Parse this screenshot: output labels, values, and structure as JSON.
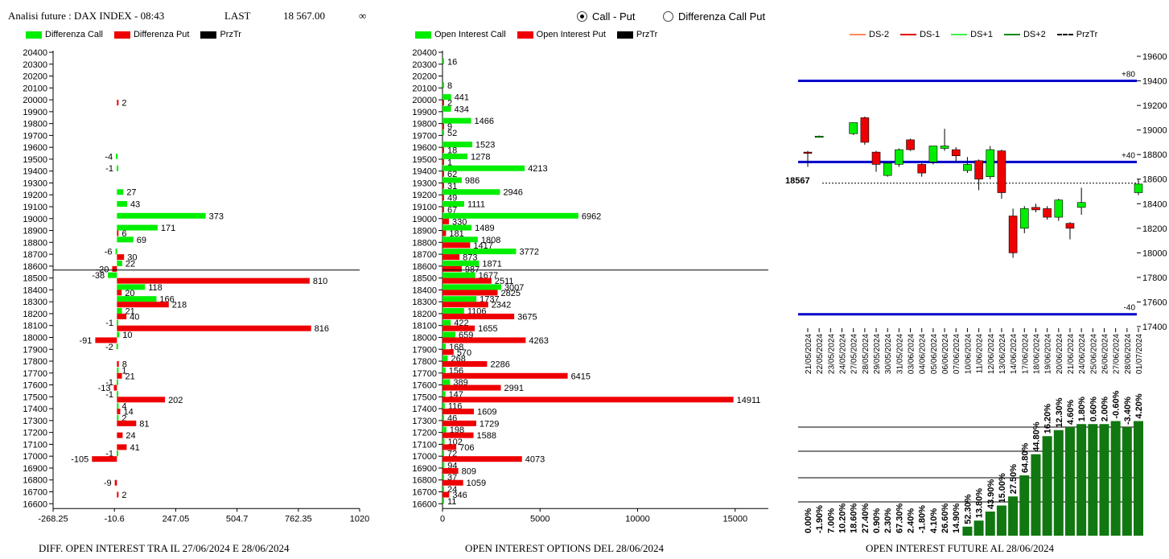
{
  "header": {
    "title": "Analisi future : DAX INDEX - 08:43",
    "last_label": "LAST",
    "last_value": "18 567.00",
    "infinity": "∞"
  },
  "toggle": {
    "option1": "Call - Put",
    "option2": "Differenza Call Put",
    "selected": "Call - Put"
  },
  "legends": {
    "left": [
      "Differenza Call",
      "Differenza Put",
      "PrzTr"
    ],
    "middle": [
      "Open Interest Call",
      "Open Interest Put",
      "PrzTr"
    ],
    "right": [
      "DS-2",
      "DS-1",
      "DS+1",
      "DS+2",
      "PrzTr"
    ]
  },
  "colors": {
    "call": "#00ee00",
    "put": "#ee0000",
    "prz": "#000000",
    "ds_line": "#0000cc",
    "oi_bar": "#117711",
    "ds2": "#ff8855",
    "ds1": "#dd0000",
    "dsp1": "#44ee44",
    "dsp2": "#118811"
  },
  "footers": {
    "left": "DIFF. OPEN INTEREST TRA IL 27/06/2024 E 28/06/2024",
    "middle": "OPEN INTEREST OPTIONS DEL 28/06/2024",
    "right": "OPEN INTEREST FUTURE AL 28/06/2024"
  },
  "chart_data": [
    {
      "type": "bar",
      "orientation": "horizontal",
      "strikes": [
        20400,
        20300,
        20200,
        20100,
        20000,
        19900,
        19800,
        19700,
        19600,
        19500,
        19400,
        19300,
        19200,
        19100,
        19000,
        18900,
        18800,
        18700,
        18600,
        18500,
        18400,
        18300,
        18200,
        18100,
        18000,
        17900,
        17800,
        17700,
        17600,
        17500,
        17400,
        17300,
        17200,
        17100,
        17000,
        16900,
        16800,
        16700,
        16600
      ],
      "series": [
        {
          "name": "Differenza Call",
          "values": [
            null,
            null,
            null,
            null,
            null,
            null,
            null,
            null,
            null,
            -4,
            -1,
            null,
            27,
            43,
            373,
            171,
            69,
            -6,
            22,
            -38,
            118,
            166,
            21,
            -1,
            10,
            -2,
            null,
            1,
            -1,
            -1,
            4,
            2,
            null,
            null,
            -1,
            null,
            null,
            null,
            null
          ]
        },
        {
          "name": "Differenza Put",
          "values": [
            null,
            null,
            null,
            null,
            2,
            null,
            null,
            null,
            null,
            null,
            null,
            null,
            null,
            null,
            null,
            6,
            null,
            30,
            -20,
            810,
            20,
            218,
            40,
            816,
            -91,
            null,
            8,
            21,
            -13,
            202,
            14,
            81,
            24,
            41,
            -105,
            null,
            -9,
            2,
            null
          ]
        }
      ],
      "prztr": 18567,
      "xticks": [
        "-268.25",
        "-10.6",
        "247.05",
        "504.7",
        "762.35",
        "1020"
      ],
      "xlim": [
        -268.25,
        1020
      ]
    },
    {
      "type": "bar",
      "orientation": "horizontal",
      "strikes": [
        20400,
        20300,
        20200,
        20100,
        20000,
        19900,
        19800,
        19700,
        19600,
        19500,
        19400,
        19300,
        19200,
        19100,
        19000,
        18900,
        18800,
        18700,
        18600,
        18500,
        18400,
        18300,
        18200,
        18100,
        18000,
        17900,
        17800,
        17700,
        17600,
        17500,
        17400,
        17300,
        17200,
        17100,
        17000,
        16900,
        16800,
        16700,
        16600
      ],
      "series": [
        {
          "name": "Open Interest Call",
          "values": [
            null,
            16,
            null,
            8,
            441,
            434,
            1466,
            52,
            1523,
            1278,
            4213,
            986,
            2946,
            1111,
            6962,
            1489,
            1808,
            3772,
            1871,
            1677,
            3007,
            1737,
            1106,
            422,
            659,
            168,
            268,
            156,
            389,
            147,
            116,
            46,
            198,
            102,
            72,
            94,
            37,
            24,
            11
          ]
        },
        {
          "name": "Open Interest Put",
          "values": [
            null,
            null,
            null,
            null,
            2,
            null,
            9,
            null,
            18,
            1,
            62,
            31,
            49,
            67,
            330,
            181,
            1417,
            873,
            987,
            2511,
            2825,
            2342,
            3675,
            1655,
            4263,
            570,
            2286,
            6415,
            2991,
            14911,
            1609,
            1729,
            1588,
            706,
            4073,
            809,
            1059,
            346,
            null
          ]
        }
      ],
      "prztr": 18567,
      "xticks": [
        "0",
        "5000",
        "10000",
        "15000"
      ],
      "xlim": [
        0,
        16700
      ]
    },
    {
      "type": "candlestick",
      "dates": [
        "21/05/2024",
        "22/05/2024",
        "23/05/2024",
        "24/05/2024",
        "27/05/2024",
        "28/05/2024",
        "29/05/2024",
        "30/05/2024",
        "31/05/2024",
        "03/06/2024",
        "04/06/2024",
        "05/06/2024",
        "06/06/2024",
        "07/06/2024",
        "10/06/2024",
        "11/06/2024",
        "12/06/2024",
        "13/06/2024",
        "14/06/2024",
        "17/06/2024",
        "18/06/2024",
        "19/06/2024",
        "20/06/2024",
        "21/06/2024",
        "24/06/2024",
        "25/06/2024",
        "26/06/2024",
        "27/06/2024",
        "28/06/2024",
        "01/07/2024"
      ],
      "candles": [
        {
          "o": 18820,
          "h": 18830,
          "l": 18700,
          "c": 18810
        },
        {
          "o": 18950,
          "h": 18955,
          "l": 18940,
          "c": 18950
        },
        null,
        null,
        {
          "o": 18970,
          "h": 19060,
          "l": 18960,
          "c": 19060
        },
        {
          "o": 19100,
          "h": 19110,
          "l": 18880,
          "c": 18900
        },
        {
          "o": 18820,
          "h": 18830,
          "l": 18660,
          "c": 18720
        },
        {
          "o": 18630,
          "h": 18740,
          "l": 18620,
          "c": 18730
        },
        {
          "o": 18720,
          "h": 18850,
          "l": 18700,
          "c": 18840
        },
        {
          "o": 18920,
          "h": 18930,
          "l": 18830,
          "c": 18840
        },
        {
          "o": 18720,
          "h": 18730,
          "l": 18620,
          "c": 18650
        },
        {
          "o": 18740,
          "h": 18870,
          "l": 18720,
          "c": 18870
        },
        {
          "o": 18850,
          "h": 19010,
          "l": 18830,
          "c": 18870
        },
        {
          "o": 18840,
          "h": 18860,
          "l": 18740,
          "c": 18790
        },
        {
          "o": 18670,
          "h": 18780,
          "l": 18650,
          "c": 18720
        },
        {
          "o": 18750,
          "h": 18760,
          "l": 18510,
          "c": 18600
        },
        {
          "o": 18620,
          "h": 18870,
          "l": 18600,
          "c": 18840
        },
        {
          "o": 18830,
          "h": 18840,
          "l": 18440,
          "c": 18490
        },
        {
          "o": 18300,
          "h": 18360,
          "l": 17960,
          "c": 18000
        },
        {
          "o": 18200,
          "h": 18380,
          "l": 18160,
          "c": 18360
        },
        {
          "o": 18370,
          "h": 18400,
          "l": 18330,
          "c": 18350
        },
        {
          "o": 18360,
          "h": 18380,
          "l": 18270,
          "c": 18290
        },
        {
          "o": 18290,
          "h": 18440,
          "l": 18260,
          "c": 18430
        },
        {
          "o": 18240,
          "h": 18250,
          "l": 18110,
          "c": 18200
        },
        {
          "o": 18370,
          "h": 18530,
          "l": 18310,
          "c": 18410
        },
        null,
        null,
        null,
        null,
        {
          "o": 18490,
          "h": 18600,
          "l": 18470,
          "c": 18560
        }
      ],
      "ds_lines": [
        {
          "label": "+80",
          "y": 19400
        },
        {
          "label": "+40",
          "y": 18740
        },
        {
          "label": "-40",
          "y": 17500
        }
      ],
      "prztr": 18567,
      "prztr_label": "18567",
      "yticks": [
        "19600",
        "19400",
        "19200",
        "19000",
        "18800",
        "18600",
        "18400",
        "18200",
        "18000",
        "17800",
        "17600",
        "17400"
      ],
      "ylim": [
        17400,
        19600
      ]
    },
    {
      "type": "bar",
      "labels": [
        "0.00%",
        "-1.90%",
        "7.00%",
        "10.20%",
        "18.60%",
        "27.40%",
        "0.90%",
        "2.30%",
        "67.30%",
        "2.40%",
        "-1.80%",
        "4.10%",
        "26.60%",
        "14.90%",
        "52.30%",
        "13.80%",
        "43.90%",
        "15.00%",
        "27.50%",
        "64.80%",
        "44.80%",
        "16.20%",
        "12.30%",
        "4.60%",
        "1.80%",
        "0.60%",
        "2.00%",
        "-0.60%",
        "-3.40%",
        "4.20%"
      ],
      "values": [
        null,
        null,
        null,
        null,
        null,
        null,
        null,
        null,
        null,
        null,
        null,
        null,
        null,
        null,
        3,
        5,
        8,
        10,
        13,
        20,
        27,
        33,
        35,
        36,
        37,
        37,
        37,
        38,
        36,
        38
      ]
    }
  ]
}
